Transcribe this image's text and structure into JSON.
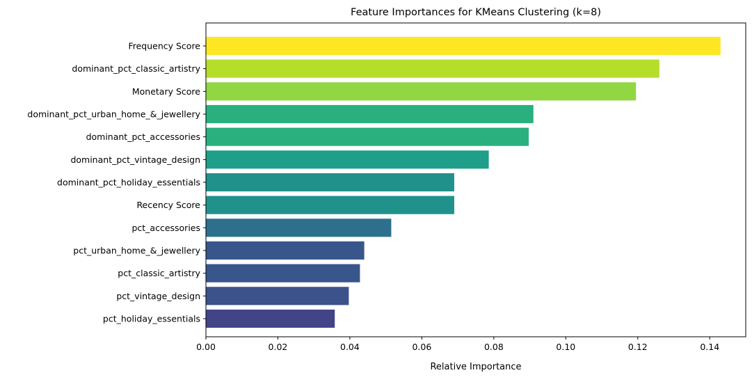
{
  "chart_data": {
    "type": "bar",
    "orientation": "horizontal",
    "title": "Feature Importances for KMeans Clustering (k=8)",
    "xlabel": "Relative Importance",
    "ylabel": "",
    "xlim": [
      0,
      0.15
    ],
    "xticks": [
      0.0,
      0.02,
      0.04,
      0.06,
      0.08,
      0.1,
      0.12,
      0.14
    ],
    "xtick_labels": [
      "0.00",
      "0.02",
      "0.04",
      "0.06",
      "0.08",
      "0.10",
      "0.12",
      "0.14"
    ],
    "grid": false,
    "legend": "none",
    "categories": [
      "Frequency Score",
      "dominant_pct_classic_artistry",
      "Monetary Score",
      "dominant_pct_urban_home_&_jewellery",
      "dominant_pct_accessories",
      "dominant_pct_vintage_design",
      "dominant_pct_holiday_essentials",
      "Recency Score",
      "pct_accessories",
      "pct_urban_home_&_jewellery",
      "pct_classic_artistry",
      "pct_vintage_design",
      "pct_holiday_essentials"
    ],
    "values": [
      0.143,
      0.126,
      0.1195,
      0.091,
      0.0897,
      0.0786,
      0.069,
      0.069,
      0.0515,
      0.044,
      0.0428,
      0.0397,
      0.0358
    ],
    "colors": [
      "#fde725",
      "#b5de2b",
      "#90d743",
      "#2ab07f",
      "#2ab07f",
      "#1f9e89",
      "#21918c",
      "#21918c",
      "#2e6f8e",
      "#39568c",
      "#39568c",
      "#3b528b",
      "#414487"
    ]
  }
}
